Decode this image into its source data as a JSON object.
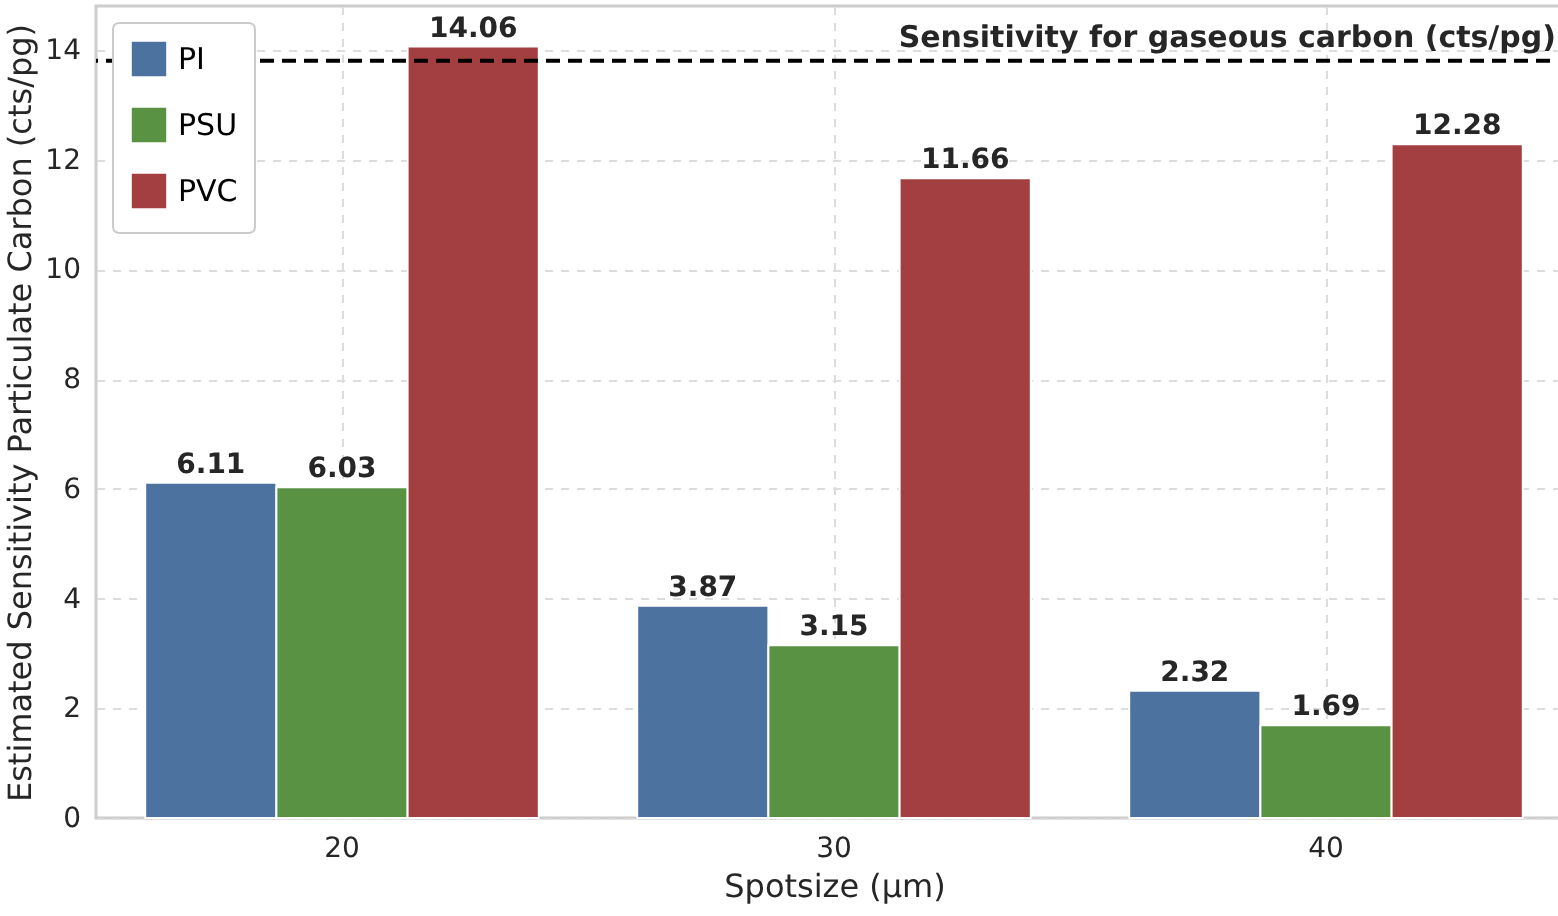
{
  "chart_data": {
    "type": "bar",
    "xlabel": "Spotsize (µm)",
    "ylabel": "Estimated Sensitivity Particulate Carbon (cts/pg)",
    "categories": [
      "20",
      "30",
      "40"
    ],
    "series": [
      {
        "name": "PI",
        "color": "#4c72a0",
        "values": [
          6.11,
          3.87,
          2.32
        ]
      },
      {
        "name": "PSU",
        "color": "#5a9243",
        "values": [
          6.03,
          3.15,
          1.69
        ]
      },
      {
        "name": "PVC",
        "color": "#a33f40",
        "values": [
          14.06,
          11.66,
          12.28
        ]
      }
    ],
    "ylim": [
      0,
      14.8
    ],
    "yticks": [
      0,
      2,
      4,
      6,
      8,
      10,
      12,
      14
    ],
    "grid": true,
    "legend": "top left",
    "data_labels": true,
    "ref_lines": [
      {
        "axis": "y",
        "value": 13.8,
        "label": "Sensitivity for gaseous carbon (cts/pg)",
        "color": "#000000",
        "line_style": "dashed"
      }
    ]
  }
}
